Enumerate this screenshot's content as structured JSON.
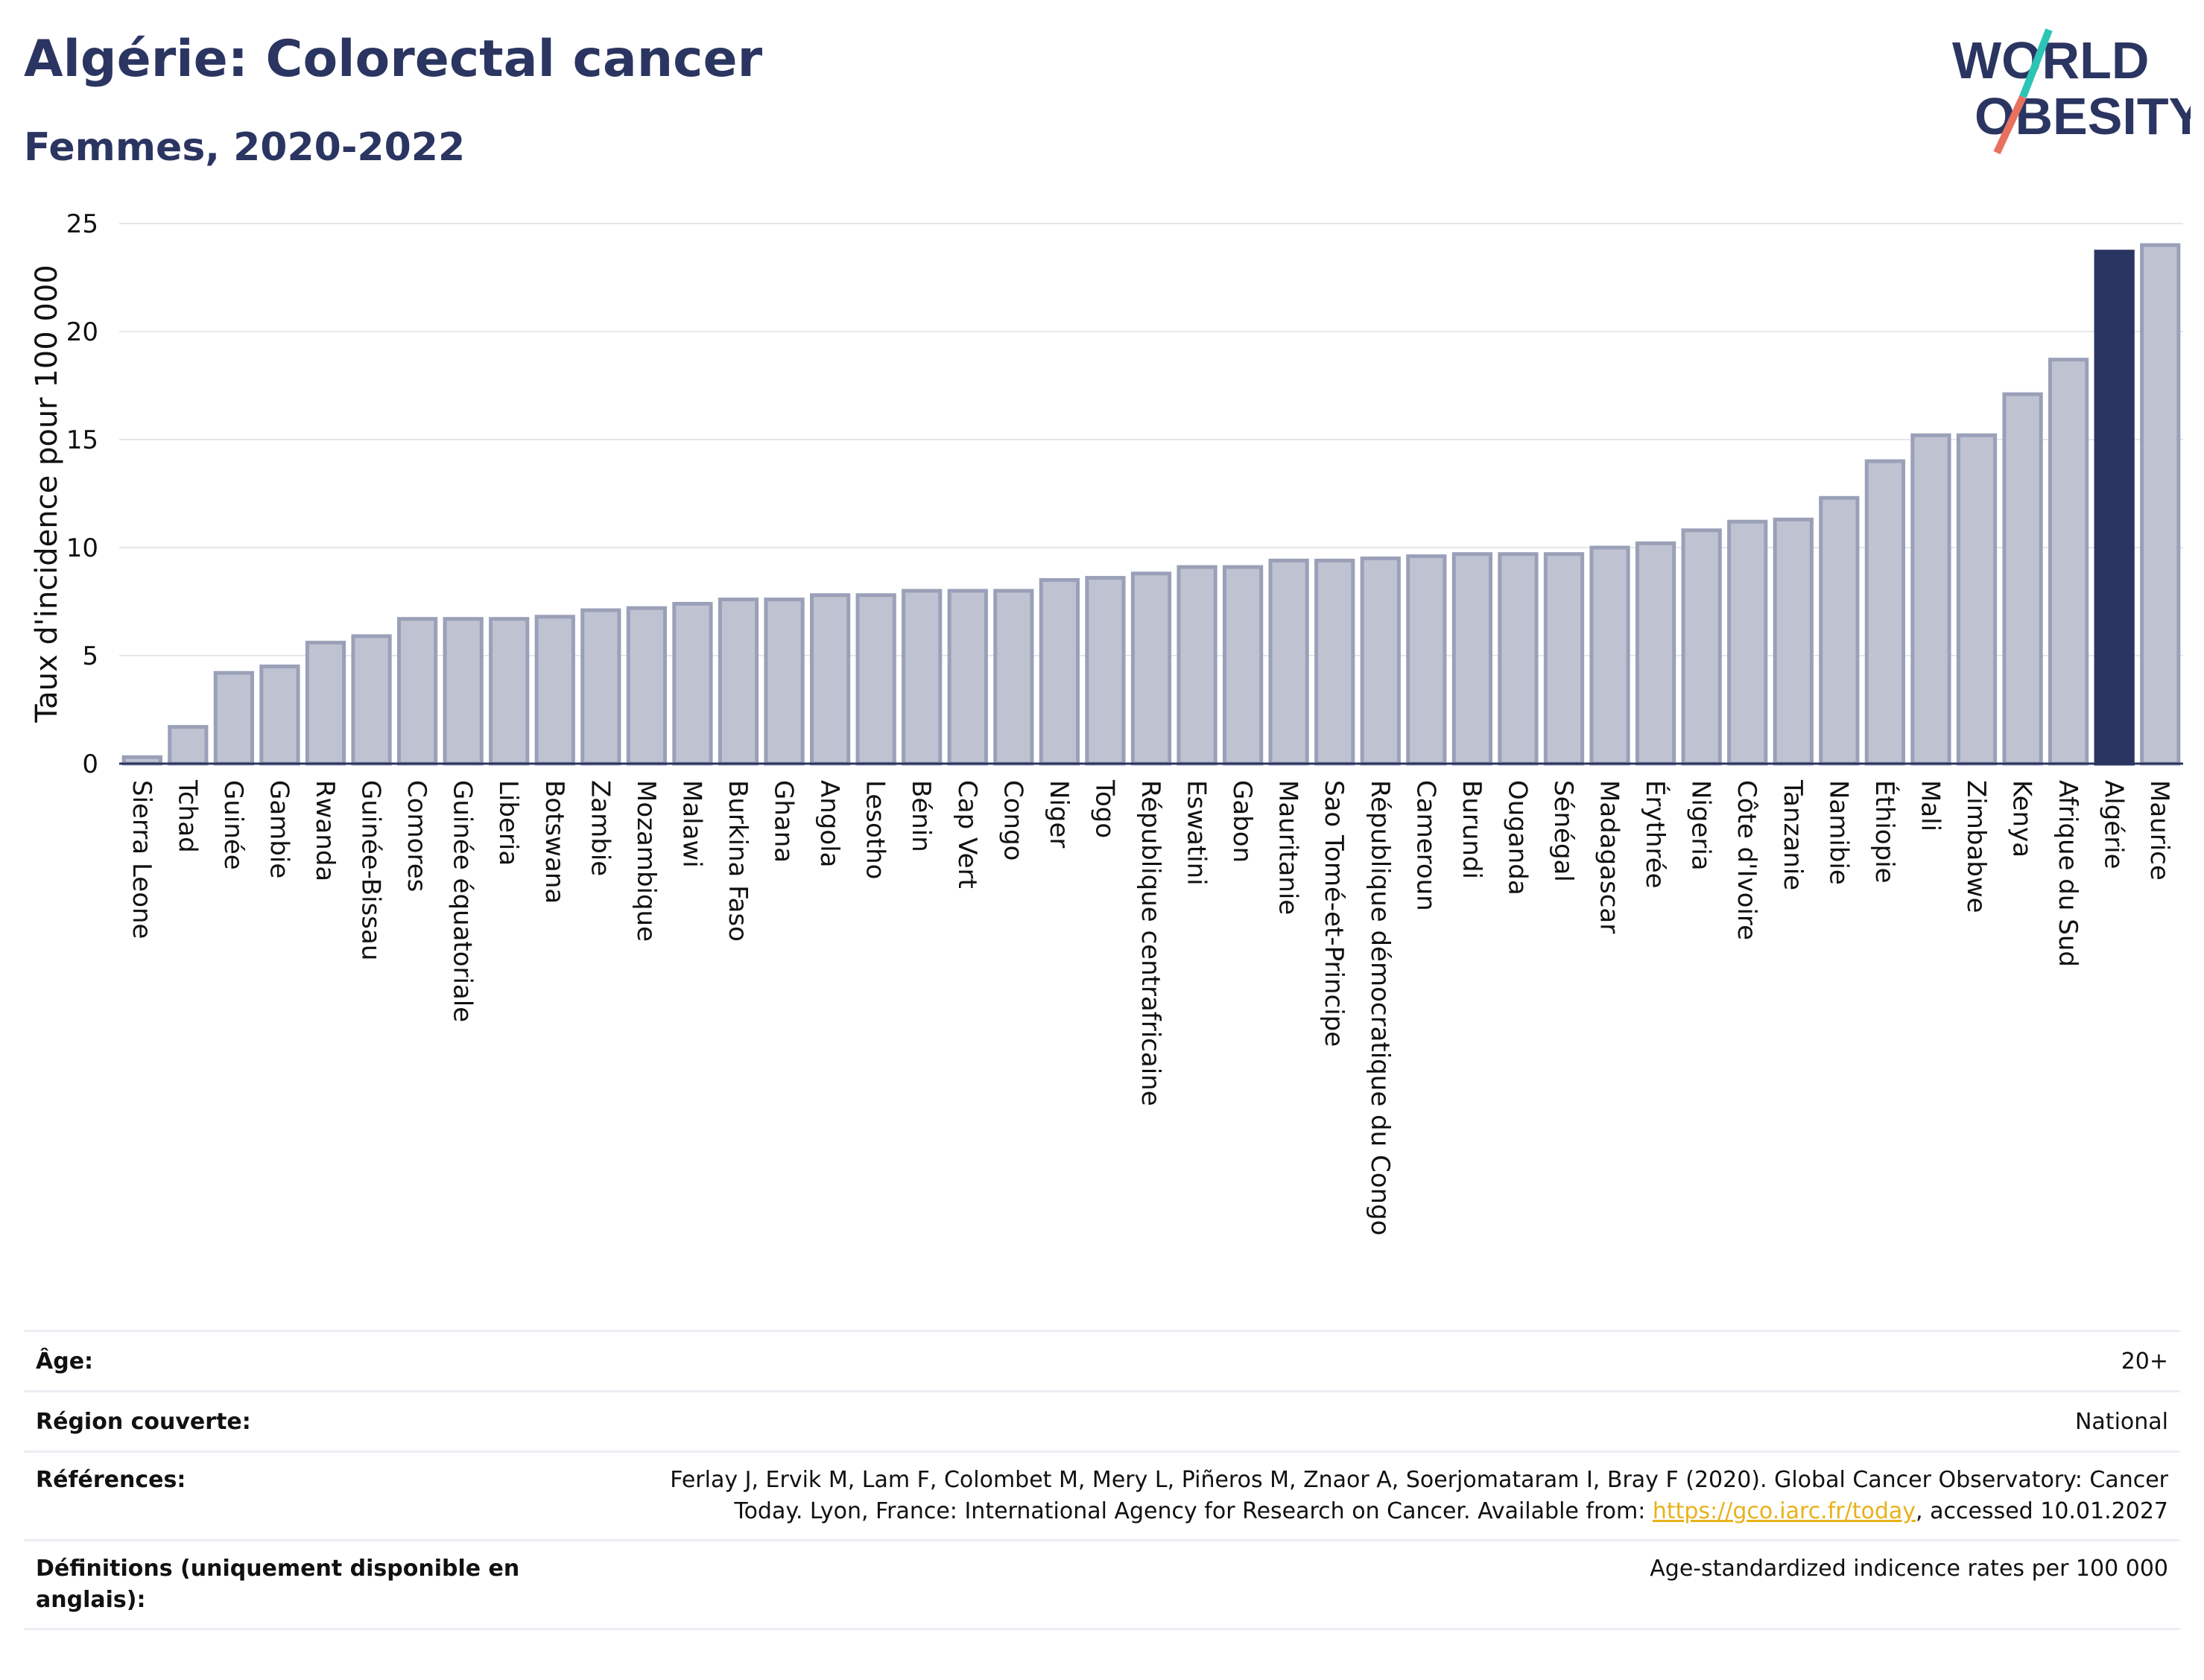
{
  "header": {
    "title": "Algérie: Colorectal cancer",
    "subtitle": "Femmes, 2020-2022"
  },
  "logo": {
    "line1": "WORLD",
    "line2": "OBESITY"
  },
  "colors": {
    "highlight": "#2b3561",
    "bar_fill": "#bfc3d1",
    "bar_stroke": "#9aa0b8",
    "grid": "#e6e7ec",
    "axis": "#2b3561",
    "link": "#e7b21b",
    "logo_teal": "#2cc4b5",
    "logo_coral": "#e8705f"
  },
  "chart_data": {
    "type": "bar",
    "ylabel": "Taux d'incidence pour 100 000",
    "ylim": [
      0,
      25
    ],
    "yticks": [
      0,
      5,
      10,
      15,
      20,
      25
    ],
    "grid": true,
    "highlight": "Algérie",
    "categories": [
      "Sierra Leone",
      "Tchad",
      "Guinée",
      "Gambie",
      "Rwanda",
      "Guinée-Bissau",
      "Comores",
      "Guinée équatoriale",
      "Liberia",
      "Botswana",
      "Zambie",
      "Mozambique",
      "Malawi",
      "Burkina Faso",
      "Ghana",
      "Angola",
      "Lesotho",
      "Bénin",
      "Cap Vert",
      "Congo",
      "Niger",
      "Togo",
      "République centrafricaine",
      "Eswatini",
      "Gabon",
      "Mauritanie",
      "Sao Tomé-et-Principe",
      "République démocratique du Congo",
      "Cameroun",
      "Burundi",
      "Ouganda",
      "Sénégal",
      "Madagascar",
      "Érythrée",
      "Nigeria",
      "Côte d'Ivoire",
      "Tanzanie",
      "Namibie",
      "Éthiopie",
      "Mali",
      "Zimbabwe",
      "Kenya",
      "Afrique du Sud",
      "Algérie",
      "Maurice"
    ],
    "values": [
      0.3,
      1.7,
      4.2,
      4.5,
      5.6,
      5.9,
      6.7,
      6.7,
      6.7,
      6.8,
      7.1,
      7.2,
      7.4,
      7.6,
      7.6,
      7.8,
      7.8,
      8.0,
      8.0,
      8.0,
      8.5,
      8.6,
      8.8,
      9.1,
      9.1,
      9.4,
      9.4,
      9.5,
      9.6,
      9.7,
      9.7,
      9.7,
      10.0,
      10.2,
      10.8,
      11.2,
      11.3,
      12.3,
      14.0,
      15.2,
      15.2,
      17.1,
      18.7,
      23.7,
      24.0
    ]
  },
  "meta": {
    "age_label": "Âge:",
    "age_value": "20+",
    "region_label": "Région couverte:",
    "region_value": "National",
    "refs_label": "Références:",
    "refs_text_1": "Ferlay J, Ervik M, Lam F, Colombet M, Mery L, Piñeros M, Znaor A, Soerjomataram I, Bray F (2020). Global Cancer Observatory: Cancer",
    "refs_text_2": "Today. Lyon, France: International Agency for Research on Cancer. Available from:",
    "refs_link": "https://gco.iarc.fr/today",
    "refs_text_3": ", accessed 10.01.2027",
    "defs_label": "Définitions (uniquement disponible en anglais):",
    "defs_value": "Age-standardized indicence rates per 100 000"
  }
}
